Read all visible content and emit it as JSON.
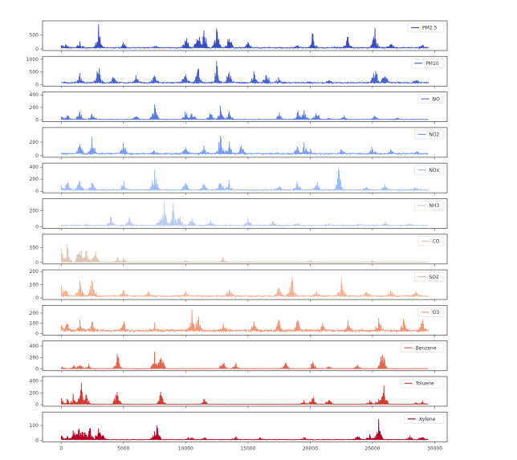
{
  "chart_data": {
    "type": "line",
    "layout": "12 stacked subplots sharing x-axis",
    "title": "",
    "xlabel": "",
    "x_ticks": [
      0,
      5000,
      10000,
      15000,
      20000,
      25000,
      30000
    ],
    "x_tick_labels": [
      "0",
      "5000",
      "10000",
      "15000",
      "20000",
      "25000",
      "30000"
    ],
    "xlim": [
      -1500,
      31000
    ],
    "legend_position": "upper right (each subplot)",
    "grid": false,
    "series": [
      {
        "name": "PM2.5",
        "color": "#3a4cc0",
        "yticks": [
          0,
          500
        ],
        "ylim": [
          0,
          950
        ],
        "peaks": [
          [
            0,
            230
          ],
          [
            400,
            200
          ],
          [
            1500,
            280
          ],
          [
            3000,
            880
          ],
          [
            5000,
            250
          ],
          [
            7500,
            180
          ],
          [
            10000,
            600
          ],
          [
            11000,
            750
          ],
          [
            11500,
            900
          ],
          [
            12500,
            880
          ],
          [
            13500,
            650
          ],
          [
            15000,
            300
          ],
          [
            19000,
            200
          ],
          [
            20200,
            600
          ],
          [
            22000,
            100
          ],
          [
            23000,
            500
          ],
          [
            25200,
            880
          ],
          [
            26500,
            300
          ],
          [
            29000,
            200
          ]
        ],
        "baseline": 60
      },
      {
        "name": "PM10",
        "color": "#4a63d3",
        "yticks": [
          0,
          500,
          1000
        ],
        "ylim": [
          0,
          1050
        ],
        "peaks": [
          [
            0,
            120
          ],
          [
            1500,
            520
          ],
          [
            3000,
            900
          ],
          [
            4200,
            450
          ],
          [
            6000,
            450
          ],
          [
            7500,
            500
          ],
          [
            10000,
            750
          ],
          [
            11000,
            700
          ],
          [
            12500,
            950
          ],
          [
            13500,
            720
          ],
          [
            15500,
            550
          ],
          [
            16500,
            700
          ],
          [
            17500,
            400
          ],
          [
            20000,
            120
          ],
          [
            21500,
            200
          ],
          [
            25200,
            880
          ],
          [
            26000,
            600
          ],
          [
            28500,
            300
          ]
        ],
        "baseline": 100
      },
      {
        "name": "NO",
        "color": "#5b7ce3",
        "yticks": [
          0,
          200,
          400
        ],
        "ylim": [
          0,
          420
        ],
        "peaks": [
          [
            0,
            140
          ],
          [
            500,
            120
          ],
          [
            1500,
            170
          ],
          [
            2500,
            120
          ],
          [
            6000,
            100
          ],
          [
            7500,
            400
          ],
          [
            10000,
            180
          ],
          [
            10500,
            220
          ],
          [
            12000,
            160
          ],
          [
            12800,
            280
          ],
          [
            13500,
            150
          ],
          [
            17500,
            120
          ],
          [
            19000,
            160
          ],
          [
            19500,
            220
          ],
          [
            20500,
            180
          ],
          [
            21500,
            40
          ],
          [
            22700,
            80
          ],
          [
            25200,
            90
          ],
          [
            27000,
            60
          ]
        ],
        "baseline": 15
      },
      {
        "name": "NO2",
        "color": "#7a9df8",
        "yticks": [
          0,
          200
        ],
        "ylim": [
          0,
          390
        ],
        "peaks": [
          [
            0,
            60
          ],
          [
            1500,
            280
          ],
          [
            2500,
            300
          ],
          [
            5000,
            250
          ],
          [
            7500,
            120
          ],
          [
            10000,
            150
          ],
          [
            11500,
            160
          ],
          [
            12800,
            370
          ],
          [
            13500,
            240
          ],
          [
            14500,
            200
          ],
          [
            19000,
            150
          ],
          [
            19500,
            220
          ],
          [
            20000,
            100
          ],
          [
            22500,
            120
          ],
          [
            25000,
            170
          ],
          [
            26500,
            120
          ],
          [
            28500,
            100
          ]
        ],
        "baseline": 40
      },
      {
        "name": "NOx",
        "color": "#9bbcfe",
        "yticks": [
          0,
          200,
          400
        ],
        "ylim": [
          0,
          440
        ],
        "peaks": [
          [
            0,
            130
          ],
          [
            500,
            200
          ],
          [
            1500,
            240
          ],
          [
            2500,
            200
          ],
          [
            5000,
            160
          ],
          [
            7500,
            380
          ],
          [
            10000,
            230
          ],
          [
            11500,
            200
          ],
          [
            12800,
            280
          ],
          [
            13500,
            200
          ],
          [
            17500,
            120
          ],
          [
            19000,
            200
          ],
          [
            20500,
            230
          ],
          [
            22300,
            400
          ],
          [
            24500,
            100
          ],
          [
            26000,
            130
          ],
          [
            28500,
            90
          ]
        ],
        "baseline": 30
      },
      {
        "name": "NH3",
        "color": "#bdcbef",
        "yticks": [
          0,
          200
        ],
        "ylim": [
          0,
          330
        ],
        "peaks": [
          [
            0,
            25
          ],
          [
            2000,
            40
          ],
          [
            4000,
            130
          ],
          [
            5500,
            120
          ],
          [
            8000,
            200
          ],
          [
            8300,
            320
          ],
          [
            9000,
            310
          ],
          [
            9500,
            220
          ],
          [
            10500,
            130
          ],
          [
            12000,
            90
          ],
          [
            15000,
            120
          ],
          [
            17000,
            80
          ],
          [
            19000,
            60
          ],
          [
            21500,
            40
          ],
          [
            24000,
            50
          ],
          [
            26000,
            60
          ],
          [
            28000,
            40
          ]
        ],
        "baseline": 25
      },
      {
        "name": "CO",
        "color": "#e1c6b4",
        "yticks": [
          0,
          100
        ],
        "ylim": [
          0,
          180
        ],
        "peaks": [
          [
            0,
            130
          ],
          [
            500,
            140
          ],
          [
            1500,
            175
          ],
          [
            2000,
            120
          ],
          [
            2700,
            130
          ],
          [
            4500,
            40
          ],
          [
            5000,
            35
          ],
          [
            10000,
            20
          ],
          [
            13000,
            40
          ],
          [
            15000,
            10
          ],
          [
            20000,
            20
          ],
          [
            25000,
            15
          ]
        ],
        "baseline": 2
      },
      {
        "name": "SO2",
        "color": "#f4b296",
        "yticks": [
          0,
          100,
          200
        ],
        "ylim": [
          0,
          200
        ],
        "peaks": [
          [
            0,
            140
          ],
          [
            300,
            100
          ],
          [
            1500,
            180
          ],
          [
            2500,
            185
          ],
          [
            5000,
            70
          ],
          [
            7000,
            50
          ],
          [
            10000,
            50
          ],
          [
            13500,
            90
          ],
          [
            17500,
            110
          ],
          [
            18500,
            200
          ],
          [
            20500,
            60
          ],
          [
            22500,
            190
          ],
          [
            24500,
            60
          ],
          [
            26500,
            60
          ],
          [
            28500,
            50
          ]
        ],
        "baseline": 20
      },
      {
        "name": "O3",
        "color": "#f29575",
        "yticks": [
          0,
          100,
          200
        ],
        "ylim": [
          0,
          260
        ],
        "peaks": [
          [
            0,
            130
          ],
          [
            500,
            120
          ],
          [
            1500,
            160
          ],
          [
            2500,
            150
          ],
          [
            5000,
            150
          ],
          [
            7500,
            110
          ],
          [
            10500,
            260
          ],
          [
            11000,
            200
          ],
          [
            13000,
            110
          ],
          [
            15500,
            120
          ],
          [
            17500,
            160
          ],
          [
            19000,
            170
          ],
          [
            21000,
            110
          ],
          [
            23000,
            130
          ],
          [
            25500,
            180
          ],
          [
            27500,
            150
          ],
          [
            29000,
            150
          ]
        ],
        "baseline": 40
      },
      {
        "name": "Benzene",
        "color": "#e2664e",
        "yticks": [
          0,
          200,
          400
        ],
        "ylim": [
          0,
          460
        ],
        "peaks": [
          [
            0,
            60
          ],
          [
            1000,
            70
          ],
          [
            1500,
            110
          ],
          [
            2200,
            90
          ],
          [
            4500,
            320
          ],
          [
            7500,
            320
          ],
          [
            8000,
            400
          ],
          [
            13000,
            170
          ],
          [
            14000,
            110
          ],
          [
            18000,
            150
          ],
          [
            20200,
            160
          ],
          [
            21500,
            60
          ],
          [
            23800,
            90
          ],
          [
            25800,
            440
          ]
        ],
        "baseline": 10
      },
      {
        "name": "Toluene",
        "color": "#cf3f36",
        "yticks": [
          0,
          200,
          400
        ],
        "ylim": [
          0,
          450
        ],
        "peaks": [
          [
            0,
            170
          ],
          [
            500,
            110
          ],
          [
            1000,
            190
          ],
          [
            1600,
            380
          ],
          [
            2000,
            270
          ],
          [
            4500,
            420
          ],
          [
            8000,
            270
          ],
          [
            11500,
            100
          ],
          [
            19500,
            80
          ],
          [
            20200,
            230
          ],
          [
            21500,
            130
          ],
          [
            24800,
            90
          ],
          [
            25500,
            150
          ],
          [
            25900,
            440
          ],
          [
            28500,
            40
          ],
          [
            29000,
            60
          ]
        ],
        "baseline": 10
      },
      {
        "name": "Xylene",
        "color": "#b40426",
        "yticks": [
          0,
          100
        ],
        "ylim": [
          0,
          180
        ],
        "peaks": [
          [
            0,
            40
          ],
          [
            500,
            30
          ],
          [
            1000,
            80
          ],
          [
            1400,
            110
          ],
          [
            1700,
            95
          ],
          [
            1900,
            65
          ],
          [
            2300,
            125
          ],
          [
            3000,
            140
          ],
          [
            3300,
            55
          ],
          [
            7500,
            60
          ],
          [
            7700,
            120
          ],
          [
            10200,
            20
          ],
          [
            10500,
            25
          ],
          [
            11500,
            20
          ],
          [
            14000,
            25
          ],
          [
            16000,
            20
          ],
          [
            19500,
            20
          ],
          [
            23800,
            40
          ],
          [
            24800,
            50
          ],
          [
            25500,
            160
          ],
          [
            28000,
            30
          ],
          [
            29000,
            40
          ]
        ],
        "baseline": 5
      }
    ]
  }
}
